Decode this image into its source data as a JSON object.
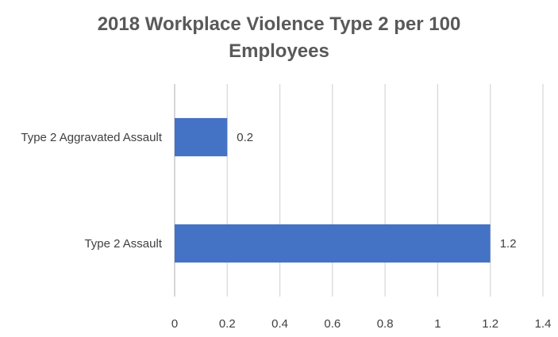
{
  "chart_data": {
    "type": "bar",
    "orientation": "horizontal",
    "title_lines": [
      "2018 Workplace Violence Type 2 per 100",
      "Employees"
    ],
    "categories": [
      "Type 2 Aggravated Assault",
      "Type 2 Assault"
    ],
    "values": [
      0.2,
      1.2
    ],
    "data_labels": [
      "0.2",
      "1.2"
    ],
    "xlim": [
      0,
      1.4
    ],
    "x_ticks": [
      0,
      0.2,
      0.4,
      0.6,
      0.8,
      1,
      1.2,
      1.4
    ],
    "x_tick_labels": [
      "0",
      "0.2",
      "0.4",
      "0.6",
      "0.8",
      "1",
      "1.2",
      "1.4"
    ],
    "xlabel": "",
    "ylabel": "",
    "grid": true,
    "legend": "none"
  },
  "colors": {
    "bar": "#4472C4",
    "grid": "#D9D9D9",
    "axis": "#BFBFBF",
    "title": "#595959",
    "label": "#404040"
  }
}
